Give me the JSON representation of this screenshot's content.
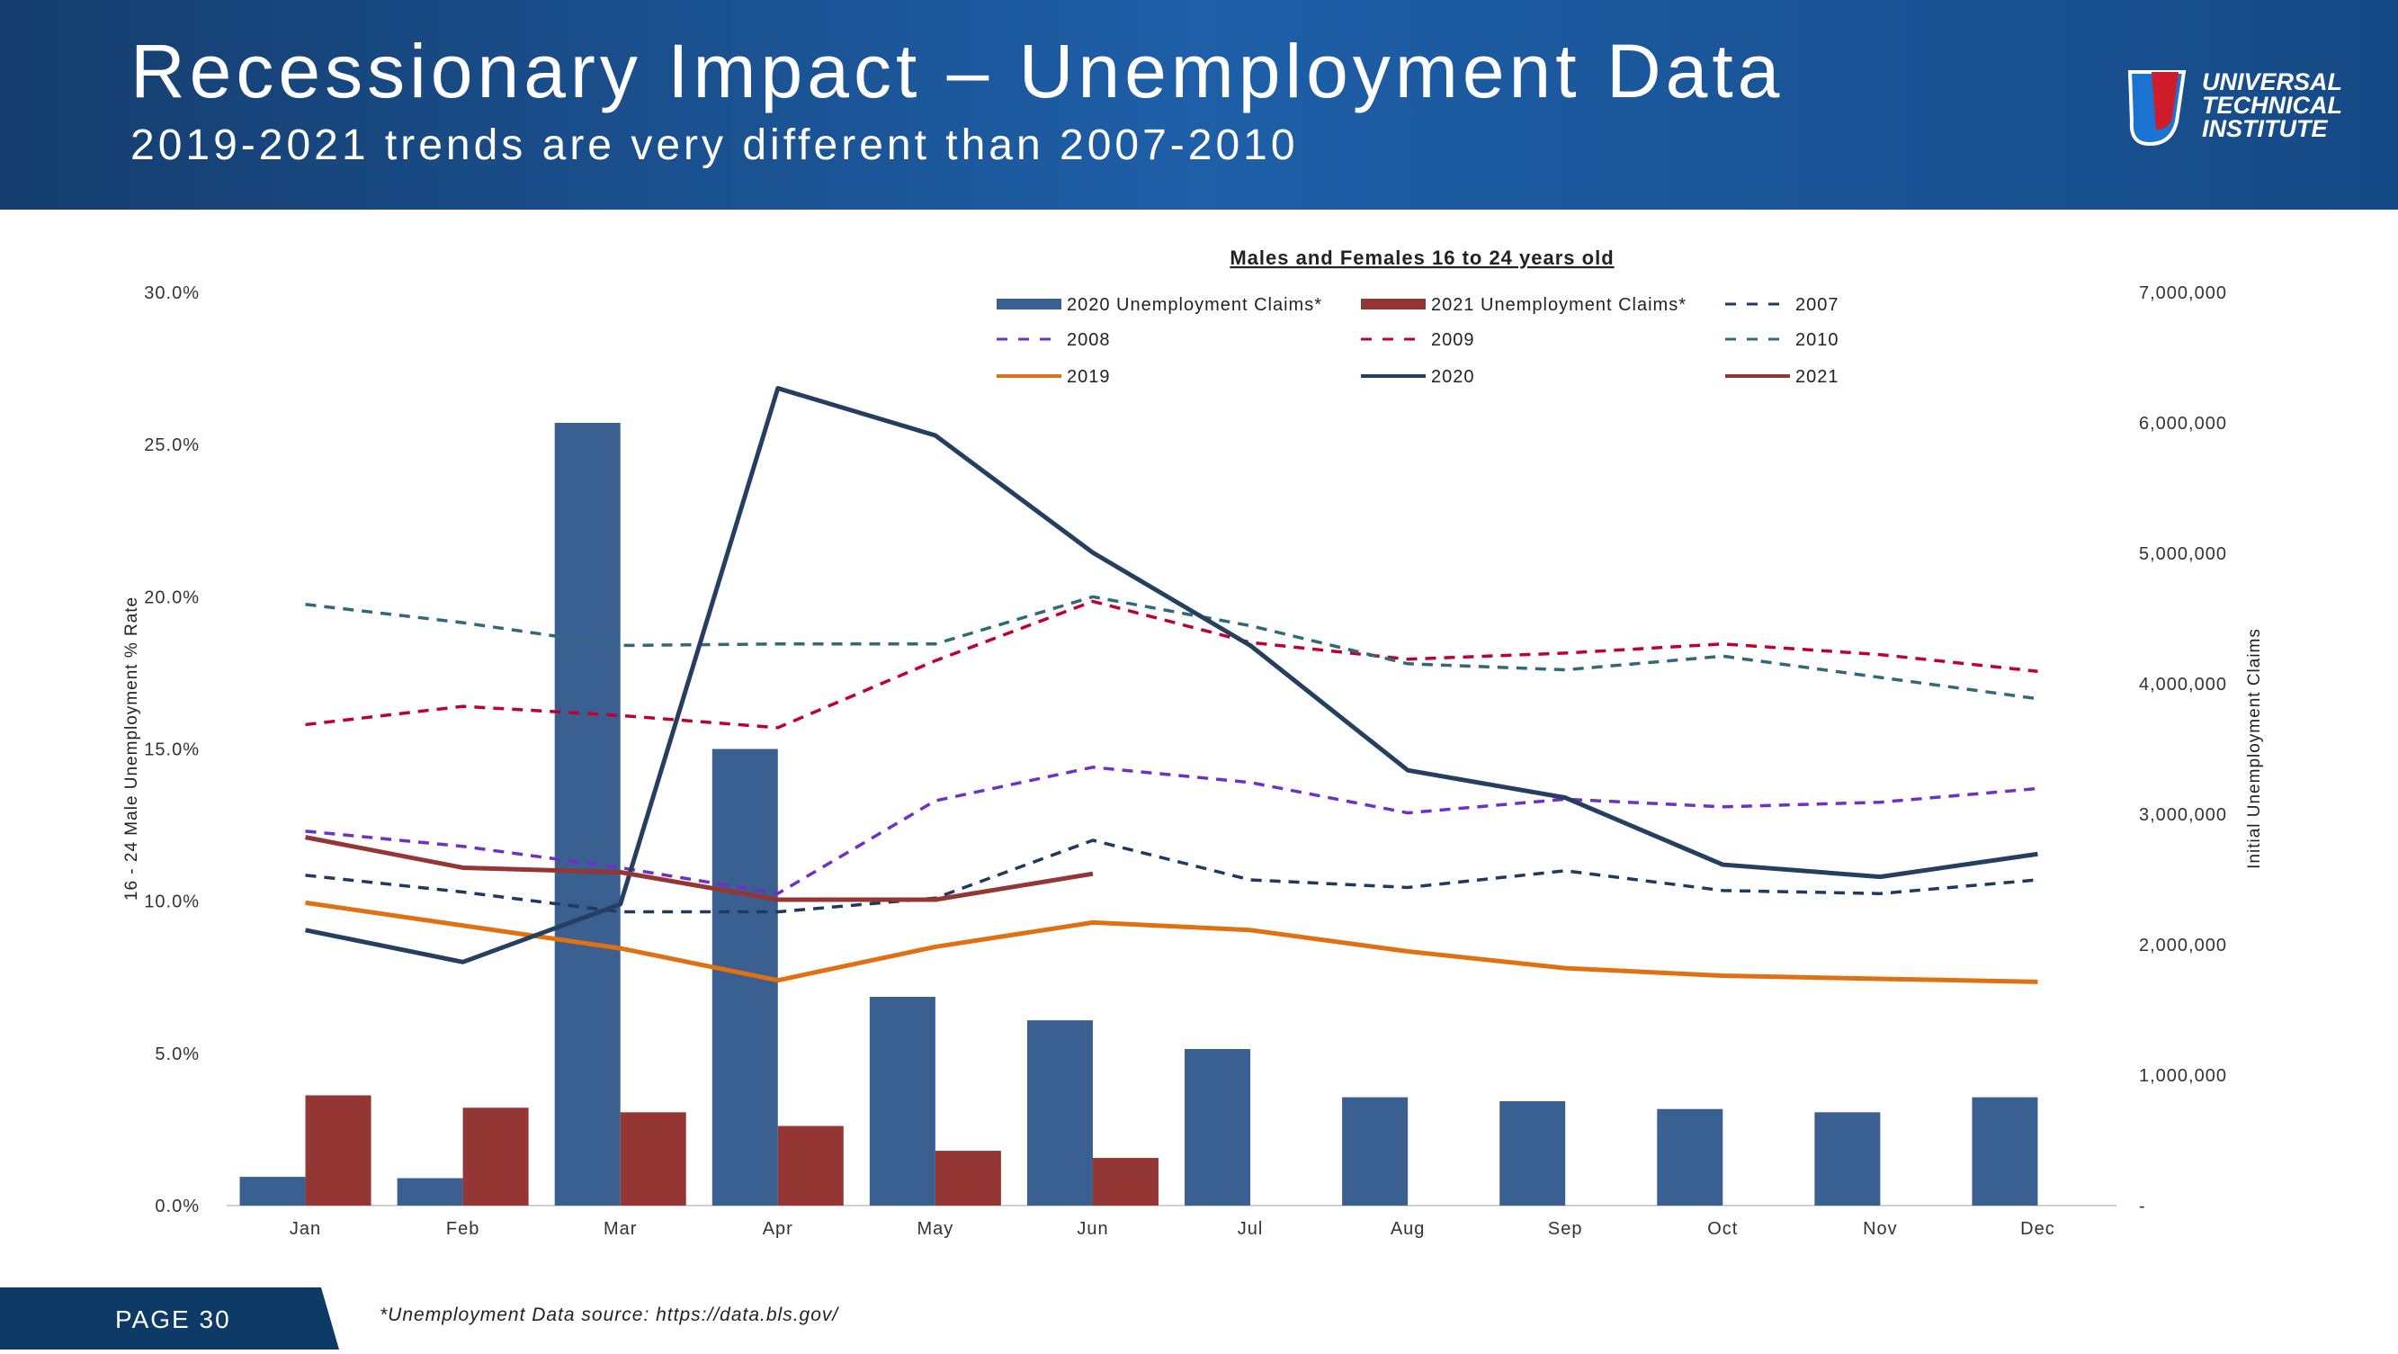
{
  "header": {
    "title": "Recessionary Impact – Unemployment Data",
    "subtitle": "2019-2021 trends are very different than 2007-2010",
    "logo": [
      "UNIVERSAL",
      "TECHNICAL",
      "INSTITUTE"
    ]
  },
  "footer": {
    "page": "PAGE 30",
    "source": "*Unemployment Data source: https://data.bls.gov/"
  },
  "chart_data": {
    "type": "combo",
    "title": "Males and Females 16 to 24 years old",
    "y_label": "16 - 24 Male Unemployment % Rate",
    "y2_label": "Initial Unemployment Claims",
    "categories": [
      "Jan",
      "Feb",
      "Mar",
      "Apr",
      "May",
      "Jun",
      "Jul",
      "Aug",
      "Sep",
      "Oct",
      "Nov",
      "Dec"
    ],
    "ylim": [
      0,
      30
    ],
    "yticks": [
      {
        "value": 0,
        "label": "0.0%"
      },
      {
        "value": 5,
        "label": "5.0%"
      },
      {
        "value": 10,
        "label": "10.0%"
      },
      {
        "value": 15,
        "label": "15.0%"
      },
      {
        "value": 20,
        "label": "20.0%"
      },
      {
        "value": 25,
        "label": "25.0%"
      },
      {
        "value": 30,
        "label": "30.0%"
      }
    ],
    "y2lim": [
      0,
      7000000
    ],
    "y2ticks": [
      {
        "value": 0,
        "label": "-"
      },
      {
        "value": 1000000,
        "label": "1,000,000"
      },
      {
        "value": 2000000,
        "label": "2,000,000"
      },
      {
        "value": 3000000,
        "label": "3,000,000"
      },
      {
        "value": 4000000,
        "label": "4,000,000"
      },
      {
        "value": 5000000,
        "label": "5,000,000"
      },
      {
        "value": 6000000,
        "label": "6,000,000"
      },
      {
        "value": 7000000,
        "label": "7,000,000"
      }
    ],
    "legend": "top",
    "series": [
      {
        "name": "2020 Unemployment Claims*",
        "type": "bar",
        "axis": "y2",
        "color": "#3a5f91",
        "values": [
          220000,
          210000,
          6000000,
          3500000,
          1600000,
          1420000,
          1200000,
          830000,
          800000,
          740000,
          715000,
          830000
        ]
      },
      {
        "name": "2021 Unemployment Claims*",
        "type": "bar",
        "axis": "y2",
        "color": "#943634",
        "values": [
          845000,
          750000,
          715000,
          610000,
          420000,
          365000,
          null,
          null,
          null,
          null,
          null,
          null
        ]
      },
      {
        "name": "2007",
        "type": "line",
        "dash": true,
        "color": "#1f3a5f",
        "values": [
          10.85,
          10.3,
          9.65,
          9.65,
          10.1,
          12.0,
          10.7,
          10.45,
          11.0,
          10.35,
          10.25,
          10.7
        ]
      },
      {
        "name": "2008",
        "type": "line",
        "dash": true,
        "color": "#7030c8",
        "values": [
          12.3,
          11.8,
          11.1,
          10.25,
          13.3,
          14.4,
          13.9,
          12.9,
          13.35,
          13.1,
          13.25,
          13.7
        ]
      },
      {
        "name": "2009",
        "type": "line",
        "dash": true,
        "color": "#c00030",
        "values": [
          15.8,
          16.4,
          16.1,
          15.7,
          17.9,
          19.85,
          18.5,
          17.95,
          18.15,
          18.45,
          18.1,
          17.55
        ]
      },
      {
        "name": "2010",
        "type": "line",
        "dash": true,
        "color": "#31697a",
        "values": [
          19.75,
          19.15,
          18.4,
          18.45,
          18.45,
          20.0,
          19.05,
          17.8,
          17.6,
          18.05,
          17.35,
          16.65
        ]
      },
      {
        "name": "2019",
        "type": "line",
        "dash": false,
        "color": "#e07010",
        "values": [
          9.95,
          9.2,
          8.45,
          7.4,
          8.5,
          9.3,
          9.05,
          8.35,
          7.8,
          7.55,
          7.45,
          7.35
        ]
      },
      {
        "name": "2020",
        "type": "line",
        "dash": false,
        "color": "#243f5f",
        "values": [
          9.05,
          8.0,
          9.9,
          26.85,
          25.3,
          21.45,
          18.4,
          14.3,
          13.4,
          11.2,
          10.8,
          11.55
        ]
      },
      {
        "name": "2021",
        "type": "line",
        "dash": false,
        "color": "#943634",
        "values": [
          12.1,
          11.1,
          10.95,
          10.05,
          10.05,
          10.9,
          null,
          null,
          null,
          null,
          null,
          null
        ]
      }
    ]
  }
}
